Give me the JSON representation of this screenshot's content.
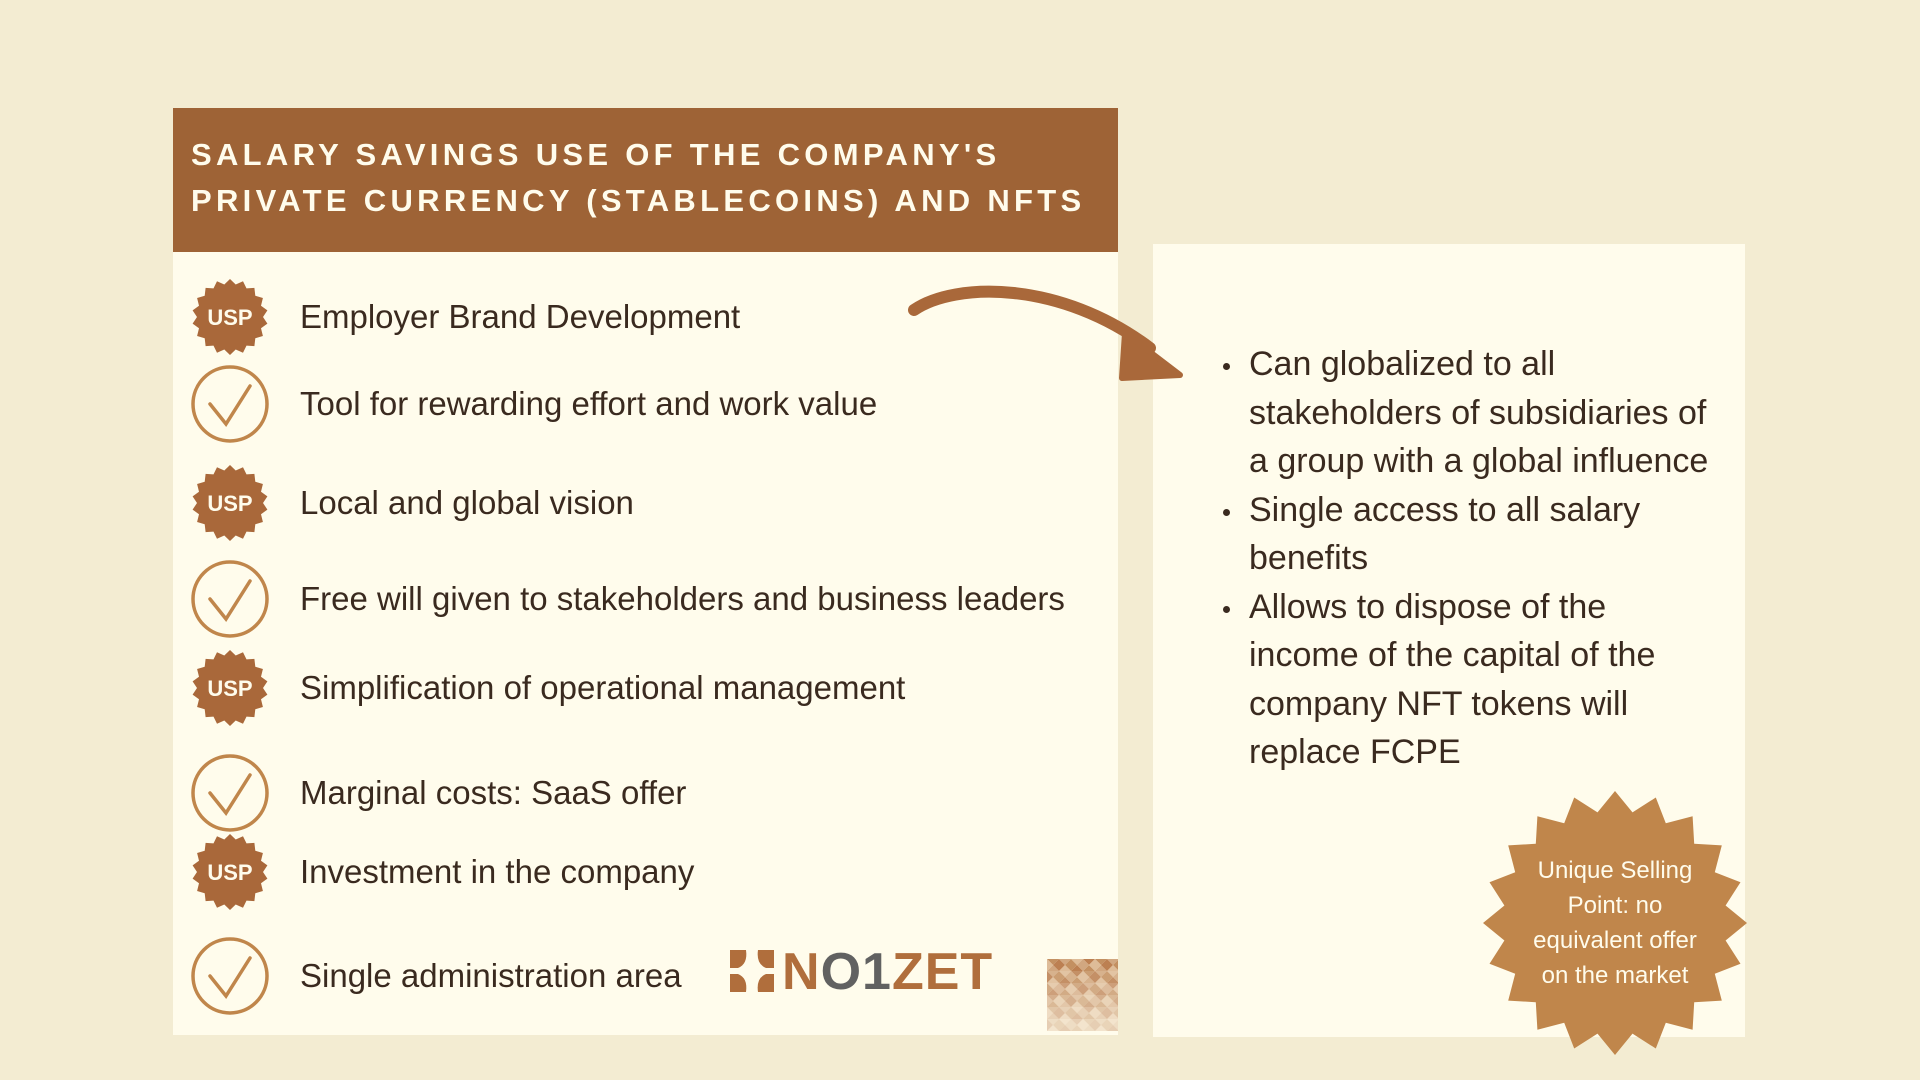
{
  "header": {
    "line1": "SALARY SAVINGS USE OF THE COMPANY'S",
    "line2": "PRIVATE CURRENCY (STABLECOINS) AND NFTS"
  },
  "items": [
    {
      "icon": "usp-badge",
      "badge": "USP",
      "label": "Employer Brand Development"
    },
    {
      "icon": "check-circle",
      "label": "Tool for rewarding effort and work value"
    },
    {
      "icon": "usp-badge",
      "badge": "USP",
      "label": "Local and global vision"
    },
    {
      "icon": "check-circle",
      "label": "Free will given to stakeholders and business leaders"
    },
    {
      "icon": "usp-badge",
      "badge": "USP",
      "label": "Simplification of operational management"
    },
    {
      "icon": "check-circle",
      "label": "Marginal costs: SaaS offer"
    },
    {
      "icon": "usp-badge",
      "badge": "USP",
      "label": "Investment in the company"
    },
    {
      "icon": "check-circle",
      "label": "Single administration area"
    }
  ],
  "bullets": [
    "Can globalized to all stakeholders of subsidiaries of a group with a global influence",
    "Single access to all salary benefits",
    "Allows to dispose of the income of the capital of the company NFT tokens will replace FCPE"
  ],
  "badge": {
    "text": "Unique Selling Point: no equivalent offer on the market"
  },
  "logo": {
    "part1": "N",
    "part2": "O1",
    "part3": "ZET"
  },
  "colors": {
    "background": "#f3ecd2",
    "panel": "#fffcec",
    "header": "#9e6336",
    "usp": "#a9683a",
    "badge": "#c0864b",
    "text": "#3a2a1f"
  }
}
